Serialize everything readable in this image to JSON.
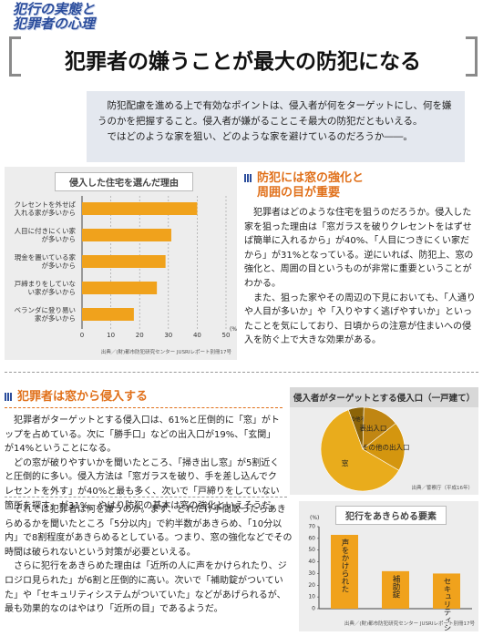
{
  "header": {
    "tag_lines": [
      "犯行の実態と",
      "犯罪者の心理"
    ],
    "title": "犯罪者の嫌うことが最大の防犯になる"
  },
  "intro": [
    "防犯配慮を進める上で有効なポイントは、侵入者が何をターゲットにし、何を嫌うのかを把握すること。侵入者が嫌がることこそ最大の防犯だともいえる。",
    "ではどのような家を狙い、どのような家を避けているのだろうか――。"
  ],
  "section1": {
    "heading": [
      "防犯には窓の強化と",
      "周囲の目が重要"
    ],
    "paragraphs": [
      "犯罪者はどのような住宅を狙うのだろうか。侵入した家を狙った理由は「窓ガラスを破りクレセントをはずせば簡単に入れるから」が40%、「人目につきにくい家だから」が31%となっている。逆にいれば、防犯上、窓の強化と、周囲の目というものが非常に重要ということがわかる。",
      "また、狙った家やその周辺の下見においても、「人通りや人目が多いか」や「入りやすく逃げやすいか」といったことを気にしており、日頃からの注意が住まいへの侵入を防ぐ上で大きな効果がある。"
    ]
  },
  "section2": {
    "heading": "犯罪者は窓から侵入する",
    "paragraphs": [
      "犯罪者がターゲットとする侵入口は、61%と圧倒的に「窓」がトップを占めている。次に「勝手口」などの出入口が19%、「玄関」が14%ということになる。",
      "どの窓が破りやすいかを聞いたところ、「掃き出し窓」が5割近くと圧倒的に多い。侵入方法は「窓ガラスを破り、手を差し込んでクレセントを外す」が40%と最も多く、次いで「戸締りをしていない箇所を探す」が31%。やはり防犯の基本は窓の強化といえそうだ。"
    ]
  },
  "section3": {
    "paragraphs": [
      "それでは犯罪者は何を嫌うのか。まず、どれだけ手間取ったらあきらめるかを聞いたところ「5分以内」で約半数があきらめ、「10分以内」で8割程度があきらめるとしている。つまり、窓の強化などでその時間は破られないという対策が必要といえる。",
      "さらに犯行をあきらめた理由は「近所の人に声をかけられたり、ジロジロ見られた」が6割と圧倒的に高い。次いで「補助錠がついていた」や「セキュリティシステムがついていた」などがあげられるが、最も効果的なのはやはり「近所の目」であるようだ。"
    ]
  },
  "chart_data": [
    {
      "type": "hbar",
      "title": "侵入した住宅を選んだ理由",
      "categories": [
        "クレセントを外せば入れる家が多いから",
        "人目に付きにくい家が多いから",
        "現金を置いている家が多いから",
        "戸締まりをしていない家が多いから",
        "ベランダに登り易い家が多いから"
      ],
      "values": [
        40,
        31,
        29,
        26,
        18
      ],
      "color": "#f0a21c",
      "xlim": [
        0,
        50
      ],
      "xticks": [
        0,
        10,
        20,
        30,
        40,
        50
      ],
      "xlabel": "(%)",
      "grid": true,
      "source": "出典／(財)都市防犯研究センター JUSRIレポート別冊17号"
    },
    {
      "type": "pie",
      "title": "侵入者がターゲットとする侵入口（一戸建て）",
      "categories": [
        "その他不明",
        "表出入口",
        "その他の出入口",
        "窓"
      ],
      "values": [
        6,
        14,
        19,
        61
      ],
      "colors": [
        "#8c6408",
        "#c08612",
        "#d4960f",
        "#e9ac1c"
      ],
      "source": "出典／警察庁（平成16年）"
    },
    {
      "type": "vbar",
      "title": "犯行をあきらめる要素",
      "categories": [
        "声をかけられた",
        "補助錠",
        "セキュリティシステム"
      ],
      "values": [
        63,
        32,
        30
      ],
      "color": "#f0a21c",
      "ylim": [
        0,
        70
      ],
      "yticks": [
        0,
        10,
        20,
        30,
        40,
        50,
        60,
        70
      ],
      "ylabel": "(%)",
      "source": "出典／(財)都市防犯研究センター JUSRIレポート別冊17号"
    }
  ]
}
